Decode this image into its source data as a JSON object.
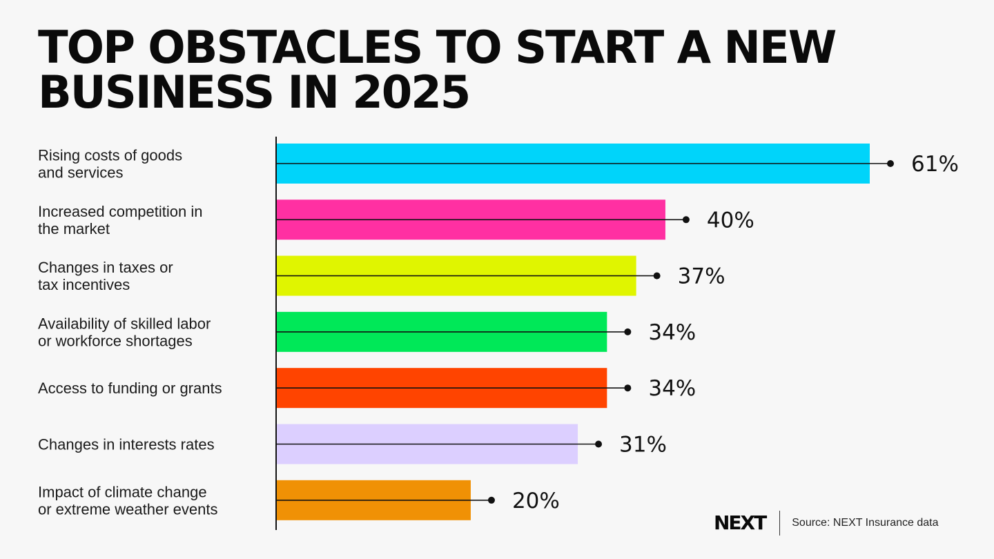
{
  "title_lines": [
    "TOP OBSTACLES TO START A NEW",
    "BUSINESS IN 2025"
  ],
  "chart_data": {
    "type": "bar",
    "orientation": "horizontal",
    "categories": [
      [
        "Rising costs of goods",
        "and services"
      ],
      [
        "Increased competition in",
        "the market"
      ],
      [
        "Changes in taxes or",
        "tax incentives"
      ],
      [
        "Availability of skilled labor",
        "or workforce shortages"
      ],
      [
        "Access to funding or grants"
      ],
      [
        "Changes in interests rates"
      ],
      [
        "Impact of climate change",
        "or extreme weather events"
      ]
    ],
    "values": [
      61,
      40,
      37,
      34,
      34,
      31,
      20
    ],
    "value_labels": [
      "61%",
      "40%",
      "37%",
      "34%",
      "34%",
      "31%",
      "20%"
    ],
    "colors": [
      "#00d4fa",
      "#ff30a2",
      "#e0f500",
      "#00e858",
      "#ff4400",
      "#dccfff",
      "#f09105"
    ],
    "grid": false,
    "legend": "none"
  },
  "footer": {
    "logo": "NEXT",
    "source": "Source: NEXT Insurance data"
  }
}
